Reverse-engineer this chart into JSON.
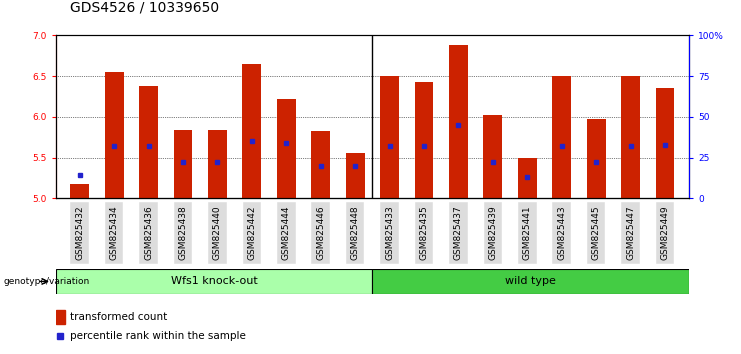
{
  "title": "GDS4526 / 10339650",
  "samples": [
    "GSM825432",
    "GSM825434",
    "GSM825436",
    "GSM825438",
    "GSM825440",
    "GSM825442",
    "GSM825444",
    "GSM825446",
    "GSM825448",
    "GSM825433",
    "GSM825435",
    "GSM825437",
    "GSM825439",
    "GSM825441",
    "GSM825443",
    "GSM825445",
    "GSM825447",
    "GSM825449"
  ],
  "transformed_counts": [
    5.17,
    6.55,
    6.38,
    5.84,
    5.84,
    6.65,
    6.22,
    5.82,
    5.55,
    6.5,
    6.43,
    6.88,
    6.02,
    5.5,
    6.5,
    5.97,
    6.5,
    6.35
  ],
  "percentile_ranks": [
    14,
    32,
    32,
    22,
    22,
    35,
    34,
    20,
    20,
    32,
    32,
    45,
    22,
    13,
    32,
    22,
    32,
    33
  ],
  "group1_label": "Wfs1 knock-out",
  "group2_label": "wild type",
  "group1_count": 9,
  "group2_count": 9,
  "ylim_left": [
    5.0,
    7.0
  ],
  "ylim_right": [
    0,
    100
  ],
  "yticks_left": [
    5.0,
    5.5,
    6.0,
    6.5,
    7.0
  ],
  "yticks_right": [
    0,
    25,
    50,
    75,
    100
  ],
  "ytick_labels_right": [
    "0",
    "25",
    "50",
    "75",
    "100%"
  ],
  "bar_color": "#cc2200",
  "dot_color": "#2222cc",
  "group1_bg": "#aaffaa",
  "group2_bg": "#44cc44",
  "tick_bg": "#dddddd",
  "genotype_label": "genotype/variation",
  "legend_bar_label": "transformed count",
  "legend_dot_label": "percentile rank within the sample",
  "bar_bottom": 5.0,
  "title_fontsize": 10,
  "tick_fontsize": 6.5,
  "label_fontsize": 8
}
